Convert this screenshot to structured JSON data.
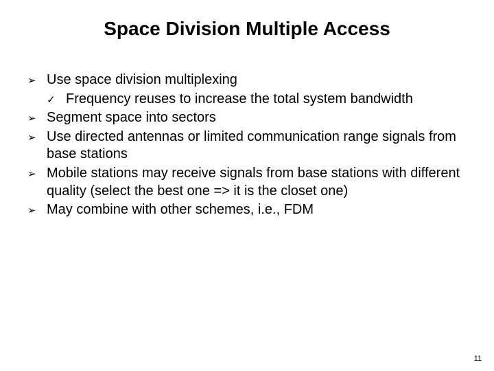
{
  "title": "Space Division Multiple Access",
  "title_fontsize": 28,
  "title_fontweight": 700,
  "body_fontsize": 20,
  "text_color": "#000000",
  "background_color": "#ffffff",
  "bullet_lvl1_glyph": "➢",
  "bullet_lvl2_glyph": "✓",
  "items": [
    {
      "text": "Use space division multiplexing",
      "children": [
        {
          "text": "Frequency reuses to increase the total system bandwidth"
        }
      ]
    },
    {
      "text": "Segment space into sectors"
    },
    {
      "text": "Use directed antennas or limited communication range signals from base stations"
    },
    {
      "text": "Mobile stations may receive signals from base stations with different quality (select the best one => it is the closet one)"
    },
    {
      "text": "May combine with other schemes, i.e., FDM"
    }
  ],
  "page_number": "11",
  "page_number_fontsize": 11
}
